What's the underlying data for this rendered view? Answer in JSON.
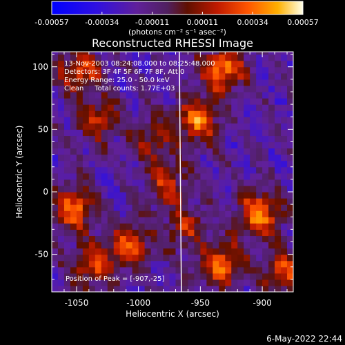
{
  "chart_data": {
    "type": "heatmap",
    "title": "Reconstructed RHESSI Image",
    "xlabel": "Heliocentric X (arcsec)",
    "ylabel": "Heliocentric Y (arcsec)",
    "xlim": [
      -1070,
      -875
    ],
    "ylim": [
      -80,
      112
    ],
    "x_ticks": [
      -1050,
      -1000,
      -950,
      -900
    ],
    "y_ticks": [
      -50,
      0,
      50,
      100
    ],
    "colorbar": {
      "range": [
        -0.00057,
        0.00057
      ],
      "ticks": [
        "-0.00057",
        "-0.00034",
        "-0.00011",
        "0.00011",
        "0.00034",
        "0.00057"
      ],
      "unit_label": "(photons cm⁻² s⁻¹ asec⁻²)"
    },
    "annotations": [
      "13-Nov-2003 08:24:08.000 to 08:25:48.000",
      "Detectors: 3F 4F 5F 6F 7F 8F, Att 0",
      "Energy Range: 25.0 - 50.0 keV",
      "Clean     Total counts: 1.77E+03"
    ],
    "peak_label": "Position of Peak = [-907,-25]",
    "limb_x": -967,
    "hotspots": [
      {
        "x": -935,
        "y": 95,
        "value": 0.00057
      },
      {
        "x": -905,
        "y": -20,
        "value": 0.00057
      },
      {
        "x": -1055,
        "y": -15,
        "value": 0.00052
      },
      {
        "x": -1050,
        "y": 95,
        "value": 0.00045
      },
      {
        "x": -955,
        "y": 55,
        "value": 0.0005
      },
      {
        "x": -935,
        "y": -60,
        "value": 0.00052
      },
      {
        "x": -1010,
        "y": -45,
        "value": 0.00045
      },
      {
        "x": -1040,
        "y": -60,
        "value": 0.00042
      },
      {
        "x": -1035,
        "y": 55,
        "value": 0.00035
      },
      {
        "x": -980,
        "y": 5,
        "value": 0.00035
      },
      {
        "x": -885,
        "y": -65,
        "value": 0.00042
      },
      {
        "x": -965,
        "y": -30,
        "value": 0.00032
      },
      {
        "x": -990,
        "y": 40,
        "value": 0.0003
      }
    ]
  },
  "footer": {
    "timestamp": "6-May-2022 22:44"
  },
  "colors": {
    "background": "#000000",
    "text": "#ffffff",
    "limb": "#ffffff"
  }
}
